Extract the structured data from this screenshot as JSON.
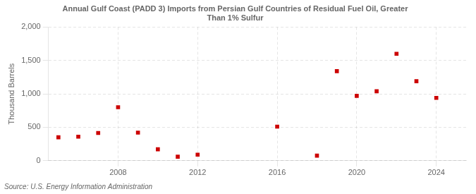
{
  "chart_data": {
    "type": "scatter",
    "title": "Annual Gulf Coast (PADD 3) Imports from Persian Gulf Countries of Residual Fuel Oil, Greater\nThan 1% Sulfur",
    "y_label": "Thousand Barrels",
    "annotations": [
      "Source: U.S. Energy Information Administration"
    ],
    "x": [
      2005,
      2006,
      2007,
      2008,
      2009,
      2010,
      2011,
      2012,
      2016,
      2018,
      2019,
      2020,
      2021,
      2022,
      2023,
      2024
    ],
    "values": [
      350,
      360,
      415,
      800,
      420,
      170,
      60,
      90,
      510,
      75,
      1340,
      970,
      1040,
      1600,
      1190,
      940
    ],
    "color": "#cc0000",
    "marker": "square",
    "xlim": [
      2004.5,
      2025.5
    ],
    "xticks": [
      2008,
      2012,
      2016,
      2020,
      2024
    ],
    "ylim": [
      0,
      2000
    ],
    "yticks": [
      0,
      500,
      {
        "value": 1000,
        "label": "1,000"
      },
      {
        "value": 1500,
        "label": "1,500"
      },
      {
        "value": 2000,
        "label": "2,000"
      }
    ],
    "grid": true
  }
}
